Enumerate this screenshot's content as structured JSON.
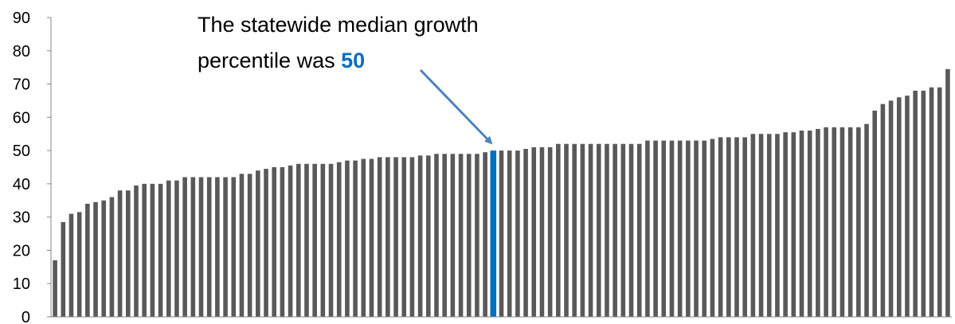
{
  "chart_data": {
    "type": "bar",
    "ylim": [
      0,
      90
    ],
    "yticks": [
      0,
      10,
      20,
      30,
      40,
      50,
      60,
      70,
      80,
      90
    ],
    "grid": false,
    "values": [
      17,
      28.5,
      31,
      31.5,
      34,
      34.5,
      35,
      36,
      38,
      38,
      39.5,
      40,
      40,
      40,
      41,
      41,
      42,
      42,
      42,
      42,
      42,
      42,
      42,
      43,
      43,
      44,
      44.5,
      45,
      45,
      45.5,
      46,
      46,
      46,
      46,
      46,
      46.5,
      47,
      47,
      47.5,
      47.5,
      48,
      48,
      48,
      48,
      48,
      48.5,
      48.5,
      49,
      49,
      49,
      49,
      49,
      49,
      49.5,
      50,
      50,
      50,
      50,
      50.5,
      51,
      51,
      51,
      52,
      52,
      52,
      52,
      52,
      52,
      52,
      52,
      52,
      52,
      52,
      53,
      53,
      53,
      53,
      53,
      53,
      53,
      53,
      53.5,
      54,
      54,
      54,
      54,
      55,
      55,
      55,
      55,
      55.5,
      55.5,
      56,
      56,
      56.5,
      57,
      57,
      57,
      57,
      57,
      58,
      62,
      64,
      65,
      66,
      66.5,
      68,
      68,
      69,
      69,
      74.5
    ],
    "highlight_value": 50,
    "colors": {
      "bar": "#595959",
      "highlight": "#0070C0",
      "arrow": "#4F81BD",
      "axis": "#868686"
    },
    "annotation": {
      "line1": "The statewide median growth",
      "line2_prefix": "percentile was ",
      "line2_value": "50"
    }
  }
}
